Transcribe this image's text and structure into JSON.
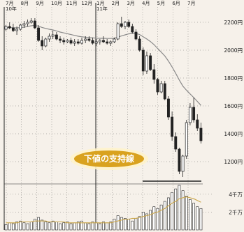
{
  "chart_data": {
    "type": "candlestick",
    "title": "",
    "x_tick_labels": [
      "7月",
      "8月",
      "9月",
      "10月",
      "11月",
      "12月",
      "1月",
      "2月",
      "3月",
      "4月",
      "5月",
      "6月",
      "7月"
    ],
    "year_labels": [
      "10年",
      "11年"
    ],
    "price_axis": {
      "ticks": [
        1200,
        1400,
        1600,
        1800,
        2000,
        2200
      ],
      "tick_labels": [
        "1200円",
        "1400円",
        "1600円",
        "1800円",
        "2000円",
        "2200円"
      ],
      "range": [
        1050,
        2250
      ]
    },
    "volume_axis": {
      "tick_labels": [
        "2千万",
        "4千万"
      ],
      "range": [
        0,
        5
      ]
    },
    "support_level": 1080,
    "annotation": "下値の支持線",
    "candles": [
      [
        2150,
        2180,
        2140,
        2170
      ],
      [
        2170,
        2200,
        2150,
        2160
      ],
      [
        2160,
        2190,
        2130,
        2140
      ],
      [
        2140,
        2170,
        2110,
        2150
      ],
      [
        2150,
        2190,
        2140,
        2180
      ],
      [
        2180,
        2210,
        2160,
        2190
      ],
      [
        2190,
        2220,
        2170,
        2200
      ],
      [
        2200,
        2230,
        2190,
        2210
      ],
      [
        2210,
        2230,
        2150,
        2160
      ],
      [
        2160,
        2180,
        2060,
        2070
      ],
      [
        2070,
        2100,
        2000,
        2030
      ],
      [
        2030,
        2090,
        2020,
        2080
      ],
      [
        2080,
        2120,
        2060,
        2100
      ],
      [
        2100,
        2140,
        2080,
        2110
      ],
      [
        2110,
        2130,
        2070,
        2080
      ],
      [
        2080,
        2100,
        2050,
        2070
      ],
      [
        2070,
        2090,
        2040,
        2060
      ],
      [
        2060,
        2080,
        2050,
        2070
      ],
      [
        2070,
        2090,
        2040,
        2050
      ],
      [
        2050,
        2080,
        2030,
        2060
      ],
      [
        2060,
        2080,
        2040,
        2050
      ],
      [
        2050,
        2090,
        2040,
        2070
      ],
      [
        2070,
        2100,
        2050,
        2080
      ],
      [
        2080,
        2100,
        2060,
        2070
      ],
      [
        2070,
        2090,
        2040,
        2050
      ],
      [
        2050,
        2080,
        2030,
        2060
      ],
      [
        2060,
        2080,
        2040,
        2070
      ],
      [
        2070,
        2100,
        2050,
        2060
      ],
      [
        2060,
        2080,
        2040,
        2050
      ],
      [
        2050,
        2070,
        2030,
        2060
      ],
      [
        2060,
        2090,
        2050,
        2080
      ],
      [
        2080,
        2200,
        2070,
        2190
      ],
      [
        2190,
        2240,
        2160,
        2170
      ],
      [
        2170,
        2210,
        2150,
        2200
      ],
      [
        2200,
        2220,
        2160,
        2170
      ],
      [
        2170,
        2190,
        2120,
        2130
      ],
      [
        2130,
        2150,
        2070,
        2080
      ],
      [
        2080,
        2100,
        1990,
        2000
      ],
      [
        2000,
        2020,
        1820,
        1850
      ],
      [
        1850,
        1990,
        1830,
        1960
      ],
      [
        1960,
        1980,
        1850,
        1860
      ],
      [
        1860,
        1900,
        1760,
        1790
      ],
      [
        1790,
        1800,
        1680,
        1700
      ],
      [
        1700,
        1780,
        1690,
        1760
      ],
      [
        1760,
        1780,
        1640,
        1650
      ],
      [
        1650,
        1670,
        1500,
        1520
      ],
      [
        1520,
        1560,
        1350,
        1380
      ],
      [
        1380,
        1410,
        1270,
        1290
      ],
      [
        1290,
        1300,
        1110,
        1130
      ],
      [
        1130,
        1250,
        1090,
        1240
      ],
      [
        1240,
        1500,
        1220,
        1480
      ],
      [
        1480,
        1620,
        1460,
        1590
      ],
      [
        1590,
        1660,
        1480,
        1500
      ],
      [
        1500,
        1540,
        1420,
        1440
      ],
      [
        1440,
        1480,
        1330,
        1350
      ]
    ],
    "moving_average": [
      2160,
      2162,
      2161,
      2160,
      2162,
      2165,
      2170,
      2175,
      2178,
      2172,
      2163,
      2156,
      2150,
      2145,
      2138,
      2130,
      2124,
      2118,
      2112,
      2106,
      2100,
      2096,
      2093,
      2090,
      2088,
      2086,
      2085,
      2085,
      2084,
      2084,
      2086,
      2094,
      2102,
      2110,
      2117,
      2120,
      2120,
      2112,
      2096,
      2080,
      2062,
      2040,
      2012,
      1986,
      1958,
      1922,
      1880,
      1834,
      1786,
      1742,
      1712,
      1686,
      1660,
      1632,
      1604
    ],
    "volume": [
      0.6,
      0.8,
      0.7,
      0.9,
      1.0,
      0.8,
      0.7,
      0.9,
      1.2,
      1.4,
      1.1,
      0.9,
      0.8,
      1.0,
      0.9,
      0.7,
      0.8,
      0.9,
      0.7,
      0.8,
      0.9,
      1.0,
      0.8,
      0.7,
      0.9,
      0.8,
      0.7,
      0.9,
      0.8,
      0.9,
      1.2,
      1.6,
      1.4,
      1.3,
      1.2,
      1.0,
      1.3,
      1.5,
      2.0,
      1.8,
      2.2,
      2.6,
      2.4,
      2.8,
      3.2,
      3.6,
      4.2,
      4.6,
      5.0,
      4.4,
      3.8,
      3.4,
      3.0,
      2.6,
      2.4
    ],
    "volume_ma": [
      0.8,
      0.8,
      0.8,
      0.8,
      0.9,
      0.9,
      0.9,
      0.9,
      1.0,
      1.0,
      1.0,
      1.0,
      0.9,
      0.9,
      0.9,
      0.9,
      0.9,
      0.8,
      0.8,
      0.8,
      0.8,
      0.8,
      0.8,
      0.8,
      0.8,
      0.8,
      0.8,
      0.8,
      0.8,
      0.8,
      0.9,
      1.0,
      1.1,
      1.2,
      1.2,
      1.3,
      1.3,
      1.4,
      1.5,
      1.6,
      1.7,
      1.9,
      2.0,
      2.2,
      2.4,
      2.7,
      3.0,
      3.2,
      3.5,
      3.6,
      3.7,
      3.6,
      3.5,
      3.3,
      3.1
    ],
    "colors": {
      "background": "#f6f1ea",
      "ink": "#222222",
      "ma_line": "#8a8a8a",
      "volume_ma_line": "#caa64a",
      "callout_fill": "#d9a21f",
      "callout_glow": "#fff3c9",
      "grid": "#555555"
    }
  }
}
